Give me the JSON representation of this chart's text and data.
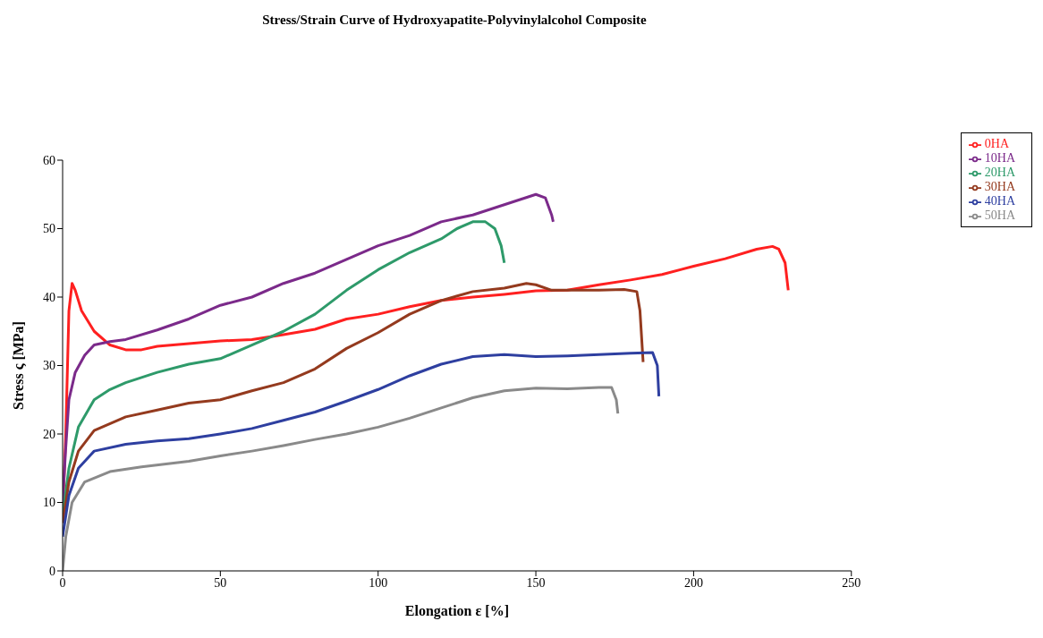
{
  "chart_data": {
    "type": "line",
    "title": "Stress/Strain Curve  of Hydroxyapatite-Polyvinylalcohol Composite",
    "xlabel": "Elongation ε [%]",
    "ylabel": "Stress ς [MPa]",
    "xlim": [
      0,
      250
    ],
    "xticks": [
      0,
      50,
      100,
      150,
      200,
      250
    ],
    "ylim": [
      0,
      60
    ],
    "yticks": [
      0,
      10,
      20,
      30,
      40,
      50,
      60
    ],
    "grid": false,
    "legend": "right",
    "marker": "none",
    "line_style": "solid",
    "series": [
      {
        "name": "0HA",
        "color": "#ff2020",
        "x": [
          0,
          1,
          2,
          3,
          4,
          6,
          10,
          15,
          20,
          25,
          30,
          40,
          50,
          60,
          70,
          80,
          90,
          100,
          110,
          120,
          130,
          140,
          150,
          160,
          170,
          180,
          190,
          200,
          210,
          220,
          225,
          227,
          229,
          230
        ],
        "values": [
          8,
          20,
          38,
          42,
          41,
          38,
          35,
          33,
          32.3,
          32.3,
          32.8,
          33.2,
          33.6,
          33.8,
          34.5,
          35.3,
          36.8,
          37.5,
          38.6,
          39.5,
          40,
          40.4,
          40.9,
          41,
          41.8,
          42.5,
          43.3,
          44.5,
          45.6,
          47,
          47.4,
          47,
          45,
          41
        ]
      },
      {
        "name": "10HA",
        "color": "#7b2a8a",
        "x": [
          0,
          1,
          2,
          4,
          7,
          10,
          15,
          20,
          30,
          40,
          50,
          60,
          70,
          80,
          90,
          100,
          110,
          120,
          130,
          140,
          150,
          153,
          155,
          155.5
        ],
        "values": [
          10,
          18,
          25,
          29,
          31.5,
          33,
          33.5,
          33.8,
          35.2,
          36.8,
          38.8,
          40,
          42,
          43.5,
          45.5,
          47.5,
          49,
          51,
          52,
          53.5,
          55,
          54.5,
          52,
          51
        ]
      },
      {
        "name": "20HA",
        "color": "#2e9a6a",
        "x": [
          0,
          2,
          5,
          10,
          15,
          20,
          30,
          40,
          50,
          60,
          70,
          80,
          90,
          100,
          110,
          120,
          125,
          130,
          134,
          137,
          139,
          140
        ],
        "values": [
          8,
          15,
          21,
          25,
          26.5,
          27.5,
          29,
          30.2,
          31,
          33,
          35,
          37.5,
          41,
          44,
          46.5,
          48.5,
          50,
          51,
          51,
          50,
          47.5,
          45
        ]
      },
      {
        "name": "30HA",
        "color": "#943a1e",
        "x": [
          0,
          2,
          5,
          10,
          20,
          30,
          40,
          50,
          60,
          70,
          80,
          90,
          100,
          110,
          120,
          130,
          140,
          147,
          150,
          155,
          160,
          170,
          178,
          182,
          183,
          184
        ],
        "values": [
          7,
          13,
          17.5,
          20.5,
          22.5,
          23.5,
          24.5,
          25,
          26.3,
          27.5,
          29.5,
          32.5,
          34.8,
          37.5,
          39.5,
          40.8,
          41.3,
          42,
          41.8,
          41,
          41,
          41,
          41.1,
          40.8,
          38,
          30.5
        ]
      },
      {
        "name": "40HA",
        "color": "#2e3fa0",
        "x": [
          0,
          2,
          5,
          10,
          20,
          30,
          40,
          50,
          60,
          70,
          80,
          90,
          100,
          110,
          120,
          130,
          140,
          150,
          160,
          170,
          180,
          187,
          188.5,
          189
        ],
        "values": [
          5,
          11,
          15,
          17.5,
          18.5,
          19,
          19.3,
          20,
          20.8,
          22,
          23.2,
          24.8,
          26.5,
          28.5,
          30.2,
          31.3,
          31.6,
          31.3,
          31.4,
          31.6,
          31.8,
          31.9,
          30,
          25.5
        ]
      },
      {
        "name": "50HA",
        "color": "#8a8a8a",
        "x": [
          0,
          1,
          3,
          7,
          15,
          25,
          40,
          50,
          60,
          70,
          80,
          90,
          100,
          110,
          120,
          130,
          140,
          150,
          160,
          170,
          174,
          175.5,
          176
        ],
        "values": [
          0,
          5,
          10,
          13,
          14.5,
          15.2,
          16,
          16.8,
          17.5,
          18.3,
          19.2,
          20,
          21,
          22.3,
          23.8,
          25.3,
          26.3,
          26.7,
          26.6,
          26.8,
          26.8,
          25,
          23
        ]
      }
    ]
  }
}
